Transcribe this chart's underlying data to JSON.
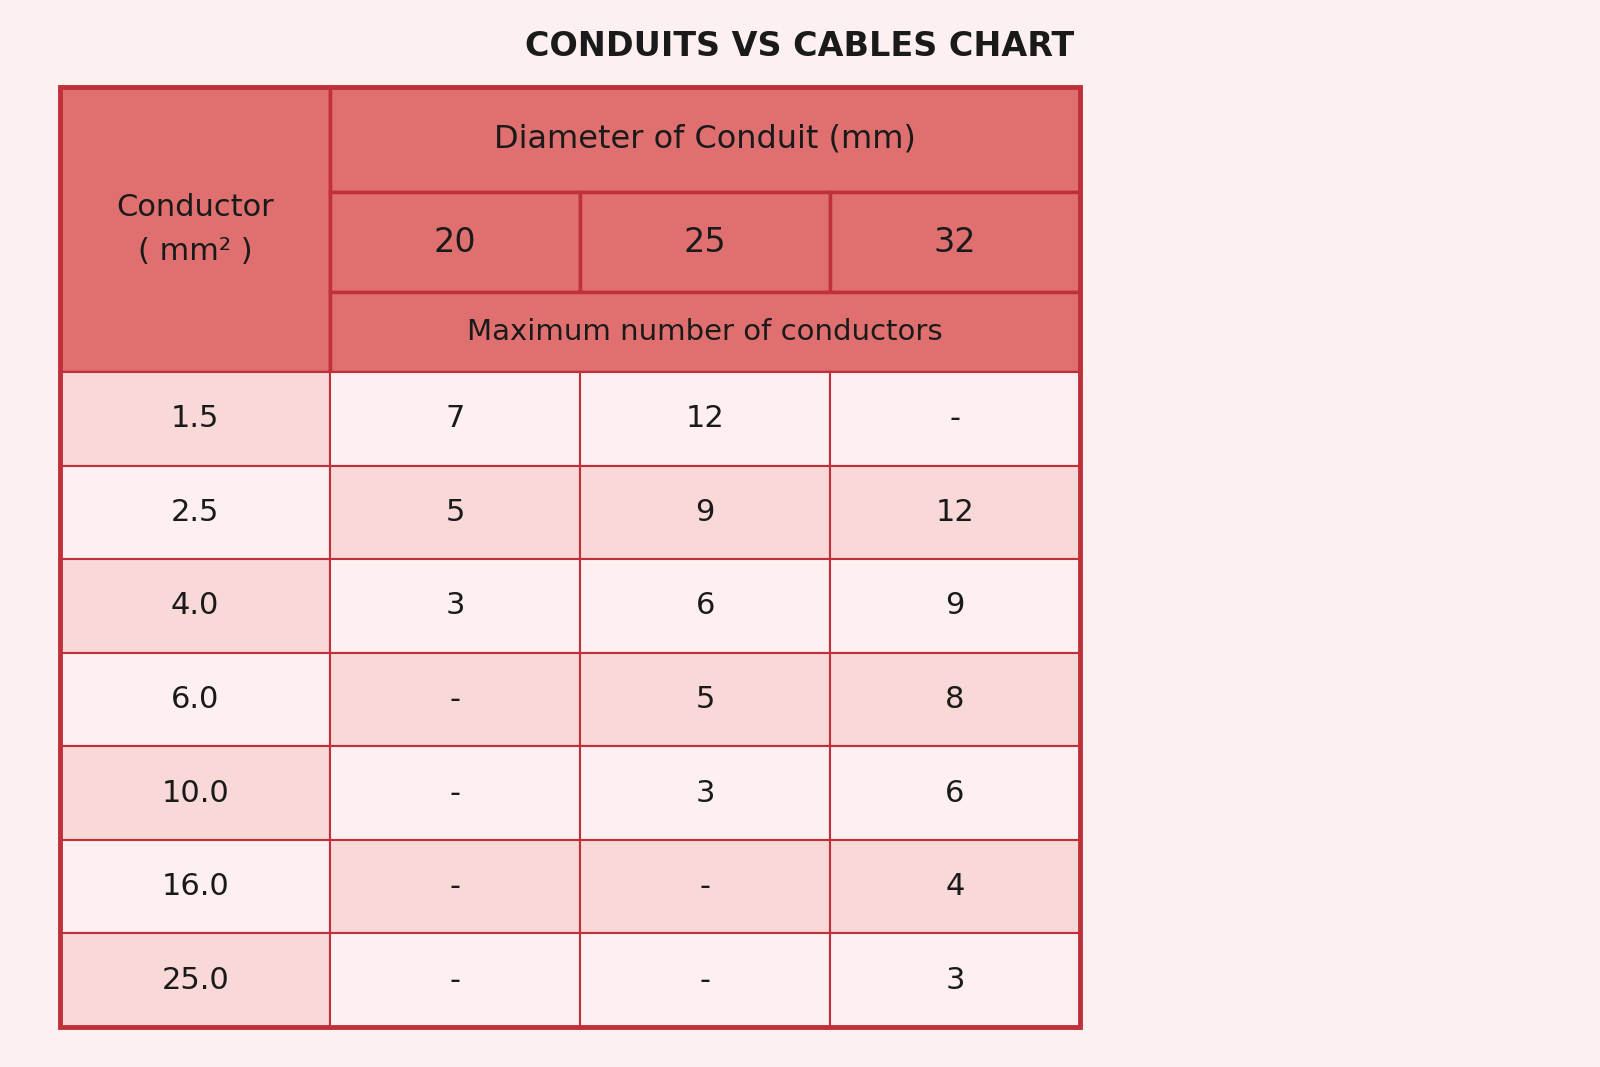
{
  "title": "CONDUITS VS CABLES CHART",
  "title_fontsize": 24,
  "title_color": "#1a1a1a",
  "background_color": "#fdf0f0",
  "header_bg": "#e07070",
  "data_row_bg_odd": "#f9d8d8",
  "data_row_bg_even": "#fef0f0",
  "border_color": "#c0303a",
  "text_color": "#1a1a1a",
  "col_header_span": "Diameter of Conduit (mm)",
  "col_subheader": "Maximum number of conductors",
  "conductor_label_line1": "Conductor",
  "conductor_label_line2": "( mm² )",
  "conduit_sizes": [
    "20",
    "25",
    "32"
  ],
  "conductor_sizes": [
    "1.5",
    "2.5",
    "4.0",
    "6.0",
    "10.0",
    "16.0",
    "25.0"
  ],
  "table_data": [
    [
      "7",
      "12",
      "-"
    ],
    [
      "5",
      "9",
      "12"
    ],
    [
      "3",
      "6",
      "9"
    ],
    [
      "-",
      "5",
      "8"
    ],
    [
      "-",
      "3",
      "6"
    ],
    [
      "-",
      "-",
      "4"
    ],
    [
      "-",
      "-",
      "3"
    ]
  ],
  "font_size_data": 22,
  "font_size_header": 22,
  "font_size_subheader": 21,
  "font_size_title": 24
}
